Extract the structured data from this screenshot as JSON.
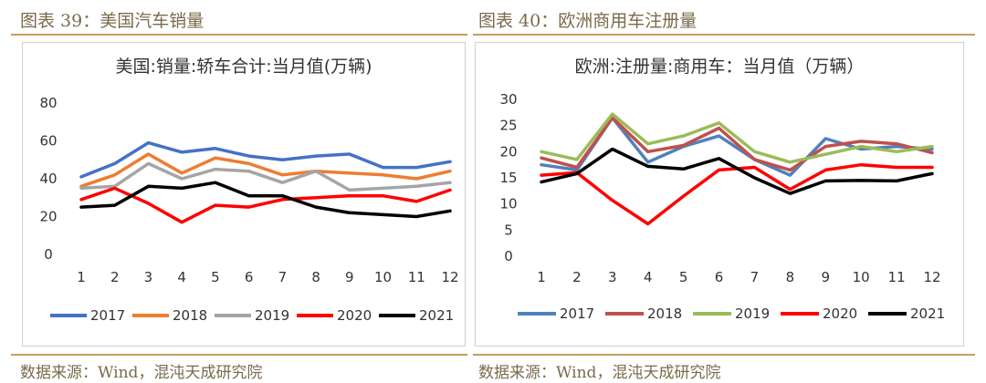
{
  "panels": [
    {
      "caption": "图表 39：美国汽车销量",
      "source": "数据来源：Wind，混沌天成研究院"
    },
    {
      "caption": "图表 40：欧洲商用车注册量",
      "source": "数据来源：Wind，混沌天成研究院"
    }
  ],
  "colors": {
    "2017": "#4472c4",
    "2018": "#ed7d31",
    "2019": "#a5a5a5",
    "2020": "#ff0000",
    "2021": "#000000",
    "caption": "#7a6a4a",
    "rule": "#c0a060",
    "c2_2017": "#4f81bd",
    "c2_2018": "#c0504d",
    "c2_2019": "#9bbb59"
  },
  "chart_data": [
    {
      "type": "line",
      "title": "美国:销量:轿车合计:当月值(万辆)",
      "x": [
        "1",
        "2",
        "3",
        "4",
        "5",
        "6",
        "7",
        "8",
        "9",
        "10",
        "11",
        "12"
      ],
      "ylim": [
        0,
        80
      ],
      "yticks": [
        "0",
        "20",
        "40",
        "60",
        "80"
      ],
      "grid": false,
      "legend": "bottom",
      "series": [
        {
          "name": "2017",
          "values": [
            41,
            48,
            59,
            54,
            56,
            52,
            50,
            52,
            53,
            46,
            46,
            49
          ]
        },
        {
          "name": "2018",
          "values": [
            36,
            42,
            53,
            43,
            51,
            48,
            42,
            44,
            43,
            42,
            40,
            44
          ]
        },
        {
          "name": "2019",
          "values": [
            35,
            36,
            48,
            40,
            45,
            44,
            38,
            44,
            34,
            35,
            36,
            38
          ]
        },
        {
          "name": "2020",
          "values": [
            29,
            35,
            27,
            17,
            26,
            25,
            29,
            30,
            31,
            31,
            28,
            34
          ]
        },
        {
          "name": "2021",
          "values": [
            25,
            26,
            36,
            35,
            38,
            31,
            31,
            25,
            22,
            21,
            20,
            23
          ]
        }
      ]
    },
    {
      "type": "line",
      "title": "欧洲:注册量:商用车：当月值（万辆）",
      "x": [
        "1",
        "2",
        "3",
        "4",
        "5",
        "6",
        "7",
        "8",
        "9",
        "10",
        "11",
        "12"
      ],
      "ylim": [
        0,
        30
      ],
      "yticks": [
        "0",
        "5",
        "10",
        "15",
        "20",
        "25",
        "30"
      ],
      "grid": false,
      "legend": "bottom",
      "series": [
        {
          "name": "2017",
          "values": [
            17.5,
            16.5,
            26.5,
            18.0,
            21.0,
            23.0,
            18.5,
            15.5,
            22.5,
            20.5,
            21.0,
            20.5
          ]
        },
        {
          "name": "2018",
          "values": [
            18.8,
            17.0,
            26.5,
            20.0,
            21.2,
            24.5,
            18.5,
            16.5,
            21.0,
            22.0,
            21.5,
            19.8
          ]
        },
        {
          "name": "2019",
          "values": [
            20.0,
            18.5,
            27.2,
            21.5,
            23.0,
            25.5,
            20.0,
            18.0,
            19.5,
            21.0,
            20.0,
            21.0
          ]
        },
        {
          "name": "2020",
          "values": [
            15.5,
            16.0,
            10.7,
            6.2,
            11.5,
            16.5,
            17.0,
            12.8,
            16.5,
            17.5,
            17.0,
            17.0
          ]
        },
        {
          "name": "2021",
          "values": [
            14.2,
            15.8,
            20.5,
            17.2,
            16.7,
            18.7,
            15.0,
            12.0,
            14.4,
            14.5,
            14.4,
            15.8
          ]
        }
      ]
    }
  ]
}
